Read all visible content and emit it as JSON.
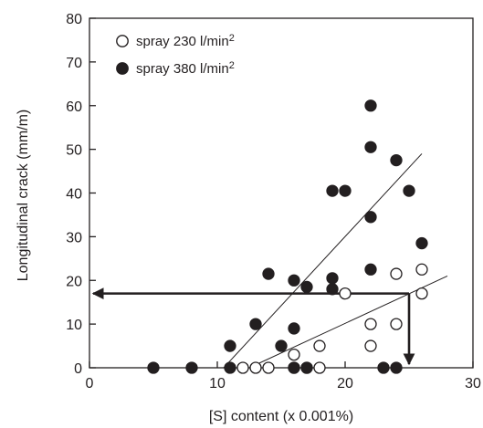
{
  "chart_data": {
    "type": "scatter",
    "title": "",
    "xlabel": "[S] content (x 0.001%)",
    "ylabel": "Longitudinal crack (mm/m)",
    "xlim": [
      0,
      30
    ],
    "ylim": [
      0,
      80
    ],
    "x_ticks": [
      "0",
      "10",
      "20",
      "30"
    ],
    "y_ticks": [
      "0",
      "10",
      "20",
      "30",
      "40",
      "50",
      "60",
      "70",
      "80"
    ],
    "grid": false,
    "legend_position": "top-left",
    "series": [
      {
        "name": "spray 230 l/min",
        "name_superscript": "2",
        "marker": "open-circle",
        "color": "#231f20",
        "points": [
          [
            12,
            0
          ],
          [
            13,
            0
          ],
          [
            14,
            0
          ],
          [
            16,
            3
          ],
          [
            16,
            0
          ],
          [
            17,
            0
          ],
          [
            18,
            0
          ],
          [
            18,
            5
          ],
          [
            20,
            17
          ],
          [
            22,
            5
          ],
          [
            22,
            10
          ],
          [
            24,
            10
          ],
          [
            24,
            21.5
          ],
          [
            26,
            22.5
          ],
          [
            26,
            17
          ]
        ]
      },
      {
        "name": "spray 380 l/min",
        "name_superscript": "2",
        "marker": "filled-circle",
        "color": "#231f20",
        "points": [
          [
            5,
            0
          ],
          [
            8,
            0
          ],
          [
            11,
            0
          ],
          [
            11,
            5
          ],
          [
            13,
            10
          ],
          [
            14,
            21.5
          ],
          [
            15,
            5
          ],
          [
            16,
            9
          ],
          [
            16,
            20
          ],
          [
            16,
            0
          ],
          [
            17,
            0
          ],
          [
            17,
            18.5
          ],
          [
            19,
            18
          ],
          [
            19,
            20.5
          ],
          [
            19,
            40.5
          ],
          [
            20,
            40.5
          ],
          [
            22,
            60
          ],
          [
            22,
            50.5
          ],
          [
            22,
            34.5
          ],
          [
            22,
            22.5
          ],
          [
            23,
            0
          ],
          [
            24,
            0
          ],
          [
            24,
            47.5
          ],
          [
            25,
            40.5
          ],
          [
            26,
            28.5
          ]
        ]
      }
    ],
    "trend_lines": [
      {
        "for": "spray 380 l/min",
        "from": [
          10.5,
          0
        ],
        "to": [
          26,
          49
        ]
      },
      {
        "for": "spray 230 l/min",
        "from": [
          12.5,
          0
        ],
        "to": [
          28,
          21
        ]
      }
    ],
    "arrow": {
      "horizontal": {
        "from": [
          25,
          17
        ],
        "to": [
          0,
          17
        ]
      },
      "vertical": {
        "from": [
          25,
          17
        ],
        "to": [
          25,
          0
        ]
      }
    }
  }
}
